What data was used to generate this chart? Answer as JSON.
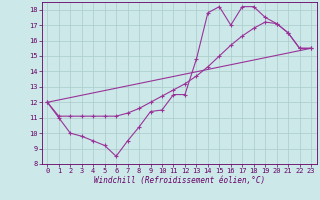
{
  "xlabel": "Windchill (Refroidissement éolien,°C)",
  "background_color": "#cce8e8",
  "line_color": "#993399",
  "grid_color": "#aacccc",
  "xlim": [
    -0.5,
    23.5
  ],
  "ylim": [
    8,
    18.5
  ],
  "xticks": [
    0,
    1,
    2,
    3,
    4,
    5,
    6,
    7,
    8,
    9,
    10,
    11,
    12,
    13,
    14,
    15,
    16,
    17,
    18,
    19,
    20,
    21,
    22,
    23
  ],
  "yticks": [
    8,
    9,
    10,
    11,
    12,
    13,
    14,
    15,
    16,
    17,
    18
  ],
  "line1_x": [
    0,
    1,
    2,
    3,
    4,
    5,
    6,
    7,
    8,
    9,
    10,
    11,
    12,
    13,
    14,
    15,
    16,
    17,
    18,
    19,
    20,
    21,
    22,
    23
  ],
  "line1_y": [
    12,
    11,
    10,
    9.8,
    9.5,
    9.2,
    8.5,
    9.5,
    10.4,
    11.4,
    11.5,
    12.5,
    12.5,
    14.8,
    17.8,
    18.2,
    17.0,
    18.2,
    18.2,
    17.5,
    17.1,
    16.5,
    15.5,
    15.5
  ],
  "line2_x": [
    0,
    1,
    2,
    3,
    4,
    5,
    6,
    7,
    8,
    9,
    10,
    11,
    12,
    13,
    14,
    15,
    16,
    17,
    18,
    19,
    20,
    21,
    22,
    23
  ],
  "line2_y": [
    12,
    11.1,
    11.1,
    11.1,
    11.1,
    11.1,
    11.1,
    11.3,
    11.6,
    12.0,
    12.4,
    12.8,
    13.2,
    13.7,
    14.3,
    15.0,
    15.7,
    16.3,
    16.8,
    17.2,
    17.1,
    16.5,
    15.5,
    15.5
  ],
  "line3_x": [
    0,
    23
  ],
  "line3_y": [
    12,
    15.5
  ]
}
